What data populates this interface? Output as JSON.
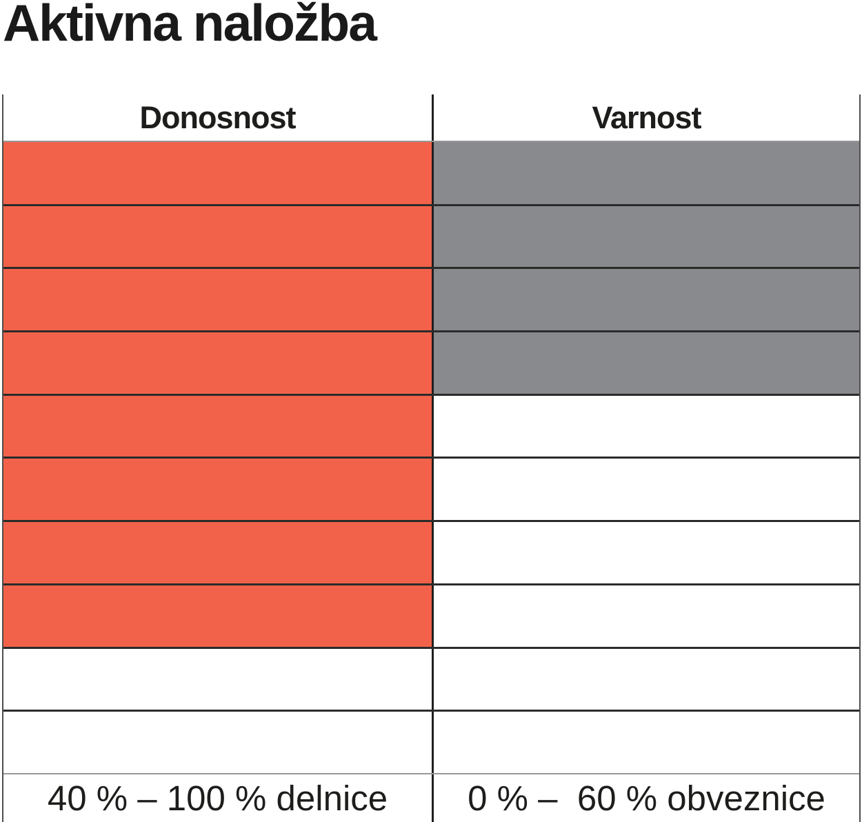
{
  "page": {
    "title": "Aktivna naložba"
  },
  "table": {
    "headers": [
      {
        "label": "Donosnost"
      },
      {
        "label": "Varnost"
      }
    ],
    "footer": [
      "40 % – 100 % delnice",
      "0 % –  60 % obveznice"
    ]
  },
  "chart_data": {
    "type": "table",
    "title": "Aktivna naložba",
    "columns": [
      "Donosnost",
      "Varnost"
    ],
    "rows_total": 10,
    "fill_direction": "from_top",
    "series": [
      {
        "name": "Donosnost",
        "filled_rows": 8,
        "color": "#F2624A",
        "range_label": "40 % – 100 % delnice",
        "asset": "delnice",
        "range_pct": [
          40,
          100
        ]
      },
      {
        "name": "Varnost",
        "filled_rows": 4,
        "color": "#898A8D",
        "range_label": "0 % –  60 % obveznice",
        "asset": "obveznice",
        "range_pct": [
          0,
          60
        ]
      }
    ],
    "legend_position": "bottom",
    "grid": true
  },
  "colors": {
    "donosnost_fill": "#F2624A",
    "varnost_fill": "#898A8D",
    "row_line": "#2b2b2b",
    "light_line": "#979797",
    "text": "#1d1d1b"
  }
}
